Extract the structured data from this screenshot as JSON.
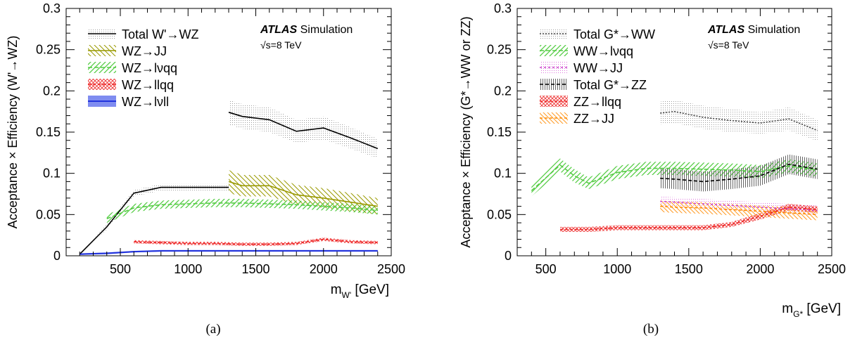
{
  "chart_data": [
    {
      "type": "line",
      "panel_label": "(a)",
      "title": "",
      "ylabel": "Acceptance × Efficiency (W'→WZ)",
      "xlabel": "m",
      "xlabel_sub": "W'",
      "xlabel_unit": " [GeV]",
      "xlim": [
        100,
        2500
      ],
      "ylim": [
        0,
        0.3
      ],
      "xticks": [
        500,
        1000,
        1500,
        2000,
        2500
      ],
      "xtick_labels": [
        "500",
        "1000",
        "1500",
        "2000",
        "2500"
      ],
      "yticks": [
        0,
        0.05,
        0.1,
        0.15,
        0.2,
        0.25,
        0.3
      ],
      "ytick_labels": [
        "0",
        "0.05",
        "0.1",
        "0.15",
        "0.2",
        "0.25",
        "0.3"
      ],
      "legend_position": "top-left",
      "annotation": {
        "bold": "ATLAS",
        "rest": " Simulation",
        "energy": "√s=8 TeV"
      },
      "series": [
        {
          "name": "Total W'→WZ",
          "color": "#000000",
          "band": "dots",
          "dash": "",
          "segments": [
            {
              "x": [
                200,
                400,
                600,
                800,
                1000,
                1200,
                1300
              ],
              "y": [
                0.002,
                0.035,
                0.076,
                0.083,
                0.083,
                0.083,
                0.083
              ],
              "err": [
                0.001,
                0.003,
                0.004,
                0.004,
                0.004,
                0.004,
                0.004
              ]
            },
            {
              "x": [
                1300,
                1400,
                1600,
                1800,
                2000,
                2200,
                2400
              ],
              "y": [
                0.174,
                0.169,
                0.165,
                0.151,
                0.155,
                0.143,
                0.13
              ],
              "err": [
                0.015,
                0.015,
                0.015,
                0.014,
                0.014,
                0.013,
                0.012
              ]
            }
          ]
        },
        {
          "name": "WZ→JJ",
          "color": "#999900",
          "band": "hatch",
          "dash": "",
          "segments": [
            {
              "x": [
                1300,
                1400,
                1600,
                1800,
                2000,
                2200,
                2400
              ],
              "y": [
                0.09,
                0.085,
                0.085,
                0.074,
                0.07,
                0.065,
                0.06
              ],
              "err": [
                0.014,
                0.013,
                0.013,
                0.012,
                0.012,
                0.011,
                0.01
              ]
            }
          ]
        },
        {
          "name": "WZ→lνqq",
          "color": "#55cc44",
          "band": "hatch2",
          "dash": "6,3",
          "segments": [
            {
              "x": [
                400,
                600,
                800,
                1000,
                1200,
                1400,
                1600,
                1800,
                2000,
                2200,
                2400
              ],
              "y": [
                0.045,
                0.058,
                0.062,
                0.063,
                0.064,
                0.064,
                0.063,
                0.062,
                0.06,
                0.058,
                0.055
              ],
              "err": [
                0.005,
                0.005,
                0.005,
                0.005,
                0.005,
                0.005,
                0.005,
                0.005,
                0.005,
                0.005,
                0.005
              ]
            }
          ]
        },
        {
          "name": "WZ→llqq",
          "color": "#ee2222",
          "band": "cross",
          "dash": "4,3",
          "segments": [
            {
              "x": [
                600,
                800,
                1000,
                1200,
                1400,
                1600,
                1800,
                2000,
                2200,
                2400
              ],
              "y": [
                0.017,
                0.016,
                0.015,
                0.015,
                0.014,
                0.014,
                0.015,
                0.02,
                0.017,
                0.016
              ],
              "err": [
                0.002,
                0.002,
                0.002,
                0.002,
                0.002,
                0.002,
                0.002,
                0.002,
                0.002,
                0.002
              ]
            }
          ]
        },
        {
          "name": "WZ→lνll",
          "color": "#2233dd",
          "band": "solid",
          "dash": "",
          "segments": [
            {
              "x": [
                200,
                400,
                600,
                800,
                1000,
                1200,
                1400,
                1600,
                1800,
                2000,
                2200,
                2400
              ],
              "y": [
                0.002,
                0.003,
                0.005,
                0.006,
                0.006,
                0.006,
                0.006,
                0.006,
                0.006,
                0.006,
                0.006,
                0.006
              ],
              "err": [
                0.001,
                0.001,
                0.001,
                0.001,
                0.001,
                0.001,
                0.001,
                0.001,
                0.001,
                0.001,
                0.001,
                0.001
              ]
            }
          ]
        }
      ]
    },
    {
      "type": "line",
      "panel_label": "(b)",
      "title": "",
      "ylabel": "Acceptance × Efficiency (G*→WW or ZZ)",
      "xlabel": "m",
      "xlabel_sub": "G*",
      "xlabel_unit": " [GeV]",
      "xlim": [
        300,
        2500
      ],
      "ylim": [
        0,
        0.3
      ],
      "xticks": [
        500,
        1000,
        1500,
        2000,
        2500
      ],
      "xtick_labels": [
        "500",
        "1000",
        "1500",
        "2000",
        "2500"
      ],
      "yticks": [
        0,
        0.05,
        0.1,
        0.15,
        0.2,
        0.25,
        0.3
      ],
      "ytick_labels": [
        "0",
        "0.05",
        "0.1",
        "0.15",
        "0.2",
        "0.25",
        "0.3"
      ],
      "legend_position": "top-left",
      "annotation": {
        "bold": "ATLAS",
        "rest": " Simulation",
        "energy": "√s=8 TeV"
      },
      "series": [
        {
          "name": "Total G*→WW",
          "color": "#444444",
          "band": "dots",
          "dash": "2,2",
          "segments": [
            {
              "x": [
                1300,
                1400,
                1600,
                1800,
                2000,
                2200,
                2400
              ],
              "y": [
                0.173,
                0.175,
                0.168,
                0.164,
                0.161,
                0.166,
                0.152
              ],
              "err": [
                0.014,
                0.014,
                0.014,
                0.014,
                0.013,
                0.014,
                0.013
              ]
            }
          ]
        },
        {
          "name": "WW→lνqq",
          "color": "#55cc44",
          "band": "hatch2",
          "dash": "6,3",
          "segments": [
            {
              "x": [
                400,
                600,
                700,
                800,
                1000,
                1200,
                1400,
                1600,
                1800,
                2000,
                2200,
                2400
              ],
              "y": [
                0.079,
                0.11,
                0.097,
                0.088,
                0.101,
                0.106,
                0.106,
                0.105,
                0.104,
                0.102,
                0.109,
                0.104
              ],
              "err": [
                0.007,
                0.008,
                0.008,
                0.007,
                0.008,
                0.008,
                0.008,
                0.008,
                0.008,
                0.008,
                0.008,
                0.008
              ]
            }
          ]
        },
        {
          "name": "WW→JJ",
          "color": "#cc44cc",
          "band": "dots2",
          "dash": "3,3",
          "segments": [
            {
              "x": [
                1300,
                1400,
                1600,
                1800,
                2000,
                2200,
                2400
              ],
              "y": [
                0.066,
                0.065,
                0.063,
                0.061,
                0.059,
                0.057,
                0.055
              ],
              "err": [
                0.006,
                0.006,
                0.006,
                0.006,
                0.006,
                0.006,
                0.006
              ]
            }
          ]
        },
        {
          "name": "Total G*→ZZ",
          "color": "#000000",
          "band": "vlines",
          "dash": "5,3",
          "segments": [
            {
              "x": [
                1300,
                1400,
                1600,
                1800,
                2000,
                2200,
                2400
              ],
              "y": [
                0.094,
                0.093,
                0.09,
                0.093,
                0.097,
                0.111,
                0.105
              ],
              "err": [
                0.012,
                0.012,
                0.012,
                0.012,
                0.012,
                0.012,
                0.012
              ]
            }
          ]
        },
        {
          "name": "ZZ→llqq",
          "color": "#ee2222",
          "band": "cross",
          "dash": "4,3",
          "segments": [
            {
              "x": [
                600,
                800,
                1000,
                1200,
                1400,
                1600,
                1800,
                2000,
                2200,
                2400
              ],
              "y": [
                0.032,
                0.032,
                0.034,
                0.034,
                0.034,
                0.034,
                0.038,
                0.048,
                0.059,
                0.056
              ],
              "err": [
                0.003,
                0.003,
                0.003,
                0.003,
                0.003,
                0.003,
                0.003,
                0.004,
                0.004,
                0.004
              ]
            }
          ]
        },
        {
          "name": "ZZ→JJ",
          "color": "#ff8800",
          "band": "hatch",
          "dash": "4,3",
          "segments": [
            {
              "x": [
                1300,
                1400,
                1600,
                1800,
                2000,
                2200,
                2400
              ],
              "y": [
                0.06,
                0.059,
                0.058,
                0.056,
                0.054,
                0.052,
                0.05
              ],
              "err": [
                0.007,
                0.007,
                0.007,
                0.007,
                0.007,
                0.007,
                0.007
              ]
            }
          ]
        }
      ]
    }
  ]
}
